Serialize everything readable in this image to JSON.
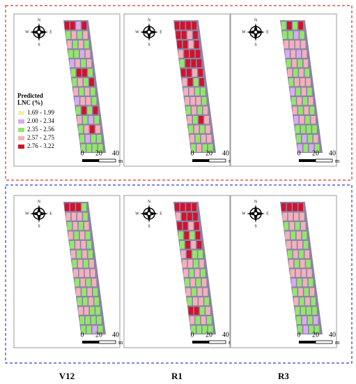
{
  "compass": {
    "n": "N",
    "s": "S",
    "e": "E",
    "w": "W"
  },
  "legend": {
    "title_lines": [
      "Predicted",
      "LNC (%)"
    ],
    "items": [
      {
        "label": "1.69 - 1.99",
        "color": "#f3efb2"
      },
      {
        "label": "2.00 - 2.34",
        "color": "#d9abef"
      },
      {
        "label": "2.35 - 2.56",
        "color": "#93e66c"
      },
      {
        "label": "2.57 - 2.75",
        "color": "#f3b1ba"
      },
      {
        "label": "2.76 - 3.22",
        "color": "#d2122c"
      }
    ]
  },
  "scale": {
    "labels": [
      "0",
      "20",
      "40"
    ],
    "unit": "m"
  },
  "columns": [
    "V12",
    "R1",
    "R3"
  ],
  "panels": [
    {
      "rows": [
        "4414",
        "2323",
        "3232",
        "2213",
        "1323",
        "2442",
        "2324",
        "3232",
        "1332",
        "2424",
        "3212",
        "2343",
        "2122",
        "2222"
      ]
    },
    {
      "rows": [
        "4444",
        "4434",
        "4434",
        "3444",
        "2444",
        "4434",
        "3424",
        "3322",
        "3332",
        "2323",
        "3243",
        "2323",
        "3233",
        "2322"
      ]
    },
    {
      "rows": [
        "2424",
        "2212",
        "3333",
        "1313",
        "2323",
        "3232",
        "2333",
        "1232",
        "2323",
        "3232",
        "1323",
        "2222",
        "2123",
        "1212"
      ]
    },
    {
      "rows": [
        "4442",
        "3332",
        "2323",
        "3232",
        "2332",
        "3232",
        "2323",
        "3333",
        "2323",
        "3232",
        "2232",
        "3322",
        "2222",
        "2212"
      ]
    },
    {
      "rows": [
        "4444",
        "3444",
        "4434",
        "2424",
        "2434",
        "3422",
        "3323",
        "3232",
        "2323",
        "3233",
        "2332",
        "4423",
        "3232",
        "2222"
      ]
    },
    {
      "rows": [
        "4444",
        "3333",
        "2323",
        "3232",
        "3332",
        "2323",
        "3232",
        "3333",
        "1232",
        "2323",
        "3232",
        "2222",
        "2121",
        "2122"
      ]
    }
  ]
}
